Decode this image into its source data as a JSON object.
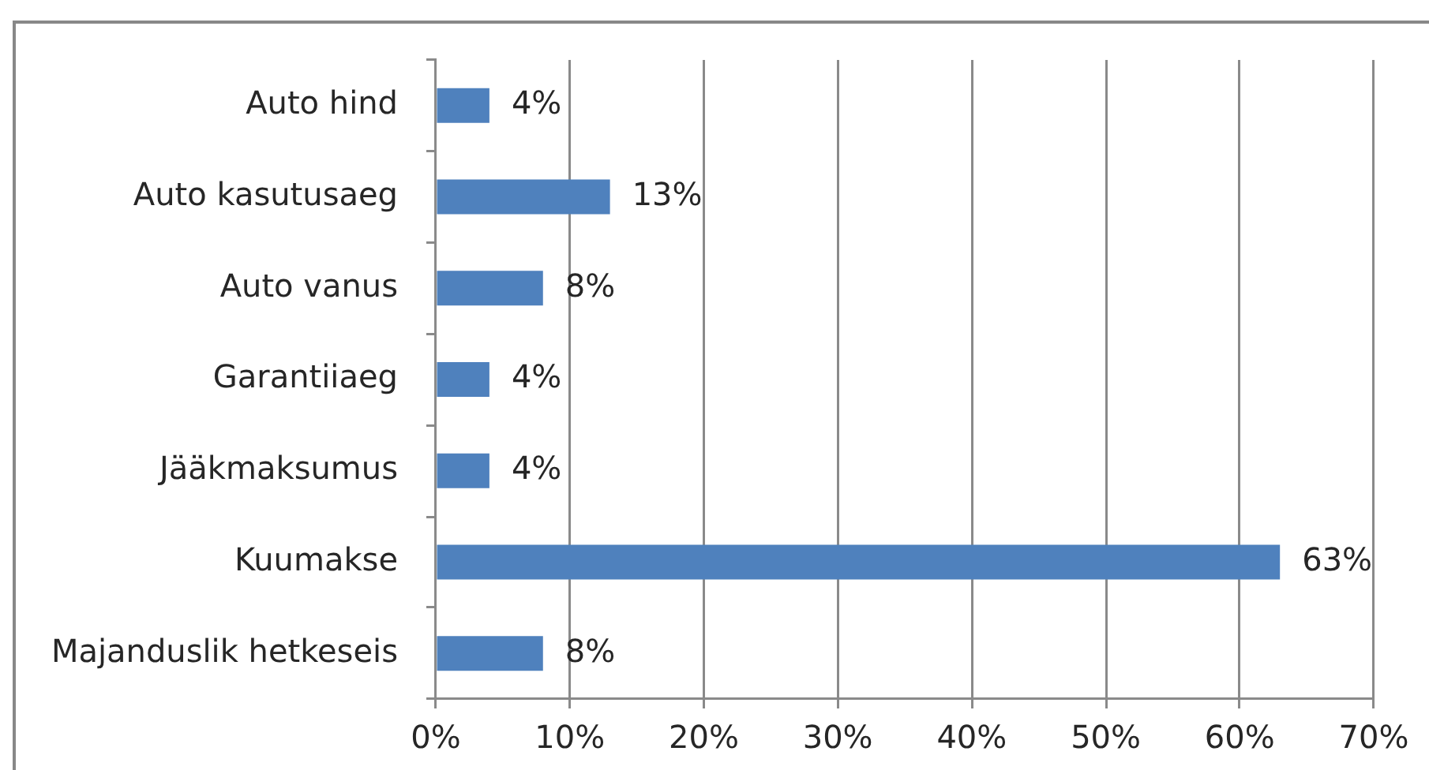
{
  "chart_data": {
    "type": "bar",
    "orientation": "horizontal",
    "categories": [
      "Auto hind",
      "Auto kasutusaeg",
      "Auto vanus",
      "Garantiiaeg",
      "Jääkmaksumus",
      "Kuumakse",
      "Majanduslik hetkeseis"
    ],
    "values": [
      4,
      13,
      8,
      4,
      4,
      63,
      8
    ],
    "color": "#4f81bd",
    "value_labels": [
      "4%",
      "13%",
      "8%",
      "4%",
      "4%",
      "63%",
      "8%"
    ],
    "xlim": [
      0,
      70
    ],
    "xticks": [
      {
        "value": 0,
        "label": "0%"
      },
      {
        "value": 10,
        "label": "10%"
      },
      {
        "value": 20,
        "label": "20%"
      },
      {
        "value": 30,
        "label": "30%"
      },
      {
        "value": 40,
        "label": "40%"
      },
      {
        "value": 50,
        "label": "50%"
      },
      {
        "value": 60,
        "label": "60%"
      },
      {
        "value": 70,
        "label": "70%"
      }
    ],
    "grid": "x"
  }
}
